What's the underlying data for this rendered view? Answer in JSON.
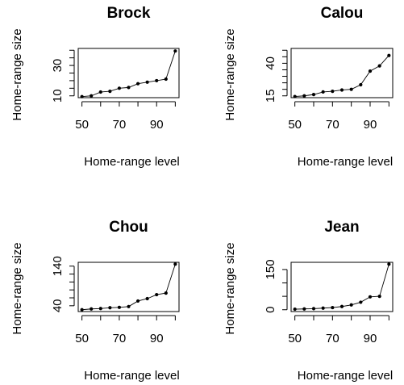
{
  "chart_data": [
    {
      "type": "line",
      "title": "Brock",
      "xlabel": "Home-range level",
      "ylabel": "Home-range size",
      "xlim": [
        50,
        100
      ],
      "ylim": [
        10,
        40
      ],
      "x_ticks": [
        50,
        70,
        90
      ],
      "y_ticks": [
        10,
        30
      ],
      "y_minor_step": 5,
      "grid": false,
      "series": [
        {
          "x": [
            50,
            55,
            60,
            65,
            70,
            75,
            80,
            85,
            90,
            95,
            100
          ],
          "y": [
            9.5,
            10,
            12.5,
            13,
            15,
            15.5,
            18,
            19,
            20,
            21,
            39.5
          ]
        }
      ]
    },
    {
      "type": "line",
      "title": "Calou",
      "xlabel": "Home-range level",
      "ylabel": "Home-range size",
      "xlim": [
        50,
        100
      ],
      "ylim": [
        15,
        50
      ],
      "x_ticks": [
        50,
        70,
        90
      ],
      "y_ticks": [
        15,
        40
      ],
      "y_minor_step": 5,
      "grid": false,
      "series": [
        {
          "x": [
            50,
            55,
            60,
            65,
            70,
            75,
            80,
            85,
            90,
            95,
            100
          ],
          "y": [
            14.5,
            15,
            16,
            18,
            18.5,
            19.5,
            20,
            23.5,
            34,
            38,
            46
          ]
        }
      ]
    },
    {
      "type": "line",
      "title": "Chou",
      "xlabel": "Home-range level",
      "ylabel": "Home-range size",
      "xlim": [
        50,
        100
      ],
      "ylim": [
        30,
        145
      ],
      "x_ticks": [
        50,
        70,
        90
      ],
      "y_ticks": [
        40,
        140
      ],
      "y_minor_step": 20,
      "grid": false,
      "series": [
        {
          "x": [
            50,
            55,
            60,
            65,
            70,
            75,
            80,
            85,
            90,
            95,
            100
          ],
          "y": [
            30,
            32,
            33,
            35,
            36,
            38,
            52,
            58,
            68,
            72,
            145
          ]
        }
      ]
    },
    {
      "type": "line",
      "title": "Jean",
      "xlabel": "Home-range level",
      "ylabel": "Home-range size",
      "xlim": [
        50,
        100
      ],
      "ylim": [
        0,
        170
      ],
      "x_ticks": [
        50,
        70,
        90
      ],
      "y_ticks": [
        0,
        150
      ],
      "y_minor_step": 50,
      "grid": false,
      "series": [
        {
          "x": [
            50,
            55,
            60,
            65,
            70,
            75,
            80,
            85,
            90,
            95,
            100
          ],
          "y": [
            2,
            3,
            4,
            6,
            8,
            12,
            18,
            28,
            48,
            50,
            170
          ]
        }
      ]
    }
  ]
}
